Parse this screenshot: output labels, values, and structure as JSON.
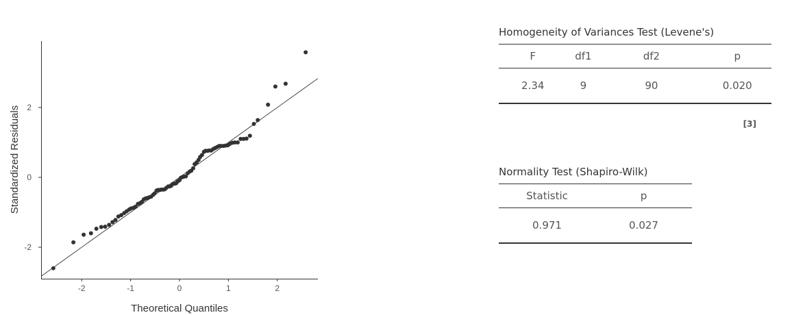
{
  "plot": {
    "xlabel": "Theoretical Quantiles",
    "ylabel": "Standardized Residuals",
    "x_ticks": [
      "-2",
      "-1",
      "0",
      "1",
      "2"
    ],
    "y_ticks": [
      "-2",
      "0",
      "2"
    ]
  },
  "chart_data": {
    "type": "scatter",
    "title": "",
    "xlabel": "Theoretical Quantiles",
    "ylabel": "Standardized Residuals",
    "xlim": [
      -2.83,
      2.83
    ],
    "ylim": [
      -2.9,
      3.9
    ],
    "x_ticks": [
      -2,
      -1,
      0,
      1,
      2
    ],
    "y_ticks": [
      -2,
      0,
      2
    ],
    "grid": false,
    "reference_line": {
      "slope": 1,
      "intercept": 0
    },
    "series": [
      {
        "points": [
          [
            -2.58,
            -2.6
          ],
          [
            -2.17,
            -1.86
          ],
          [
            -1.96,
            -1.64
          ],
          [
            -1.81,
            -1.6
          ],
          [
            -1.7,
            -1.47
          ],
          [
            -1.6,
            -1.42
          ],
          [
            -1.52,
            -1.41
          ],
          [
            -1.44,
            -1.36
          ],
          [
            -1.37,
            -1.28
          ],
          [
            -1.31,
            -1.22
          ],
          [
            -1.25,
            -1.12
          ],
          [
            -1.19,
            -1.08
          ],
          [
            -1.13,
            -1.02
          ],
          [
            -1.08,
            -0.97
          ],
          [
            -1.03,
            -0.92
          ],
          [
            -0.99,
            -0.89
          ],
          [
            -0.94,
            -0.87
          ],
          [
            -0.9,
            -0.84
          ],
          [
            -0.85,
            -0.76
          ],
          [
            -0.81,
            -0.74
          ],
          [
            -0.77,
            -0.7
          ],
          [
            -0.73,
            -0.63
          ],
          [
            -0.69,
            -0.6
          ],
          [
            -0.65,
            -0.59
          ],
          [
            -0.62,
            -0.57
          ],
          [
            -0.58,
            -0.55
          ],
          [
            -0.54,
            -0.5
          ],
          [
            -0.51,
            -0.46
          ],
          [
            -0.47,
            -0.38
          ],
          [
            -0.44,
            -0.36
          ],
          [
            -0.4,
            -0.36
          ],
          [
            -0.37,
            -0.35
          ],
          [
            -0.33,
            -0.35
          ],
          [
            -0.3,
            -0.34
          ],
          [
            -0.27,
            -0.3
          ],
          [
            -0.23,
            -0.26
          ],
          [
            -0.2,
            -0.26
          ],
          [
            -0.17,
            -0.24
          ],
          [
            -0.14,
            -0.19
          ],
          [
            -0.1,
            -0.18
          ],
          [
            -0.07,
            -0.17
          ],
          [
            -0.04,
            -0.12
          ],
          [
            0.0,
            -0.08
          ],
          [
            0.03,
            -0.01
          ],
          [
            0.06,
            0.01
          ],
          [
            0.09,
            0.02
          ],
          [
            0.13,
            0.03
          ],
          [
            0.17,
            0.12
          ],
          [
            0.21,
            0.17
          ],
          [
            0.24,
            0.19
          ],
          [
            0.28,
            0.26
          ],
          [
            0.31,
            0.38
          ],
          [
            0.35,
            0.43
          ],
          [
            0.39,
            0.5
          ],
          [
            0.42,
            0.58
          ],
          [
            0.46,
            0.64
          ],
          [
            0.5,
            0.73
          ],
          [
            0.53,
            0.76
          ],
          [
            0.57,
            0.76
          ],
          [
            0.61,
            0.77
          ],
          [
            0.65,
            0.77
          ],
          [
            0.69,
            0.81
          ],
          [
            0.73,
            0.84
          ],
          [
            0.77,
            0.87
          ],
          [
            0.81,
            0.9
          ],
          [
            0.85,
            0.9
          ],
          [
            0.9,
            0.9
          ],
          [
            0.94,
            0.91
          ],
          [
            0.99,
            0.92
          ],
          [
            1.03,
            0.96
          ],
          [
            1.08,
            0.99
          ],
          [
            1.13,
            1.0
          ],
          [
            1.19,
            1.0
          ],
          [
            1.25,
            1.1
          ],
          [
            1.31,
            1.1
          ],
          [
            1.37,
            1.11
          ],
          [
            1.44,
            1.19
          ],
          [
            1.52,
            1.53
          ],
          [
            1.6,
            1.64
          ],
          [
            1.81,
            2.08
          ],
          [
            1.96,
            2.6
          ],
          [
            2.17,
            2.68
          ],
          [
            2.58,
            3.58
          ]
        ]
      }
    ]
  },
  "levene": {
    "title": "Homogeneity of Variances Test (Levene's)",
    "headers": [
      "F",
      "df1",
      "df2",
      "p"
    ],
    "row": [
      "2.34",
      "9",
      "90",
      "0.020"
    ],
    "footnote": "[3]"
  },
  "shapiro": {
    "title": "Normality Test (Shapiro-Wilk)",
    "headers": [
      "Statistic",
      "p"
    ],
    "row": [
      "0.971",
      "0.027"
    ]
  },
  "colors": {
    "points": "#333333",
    "line": "#444444",
    "axis": "#333333"
  }
}
